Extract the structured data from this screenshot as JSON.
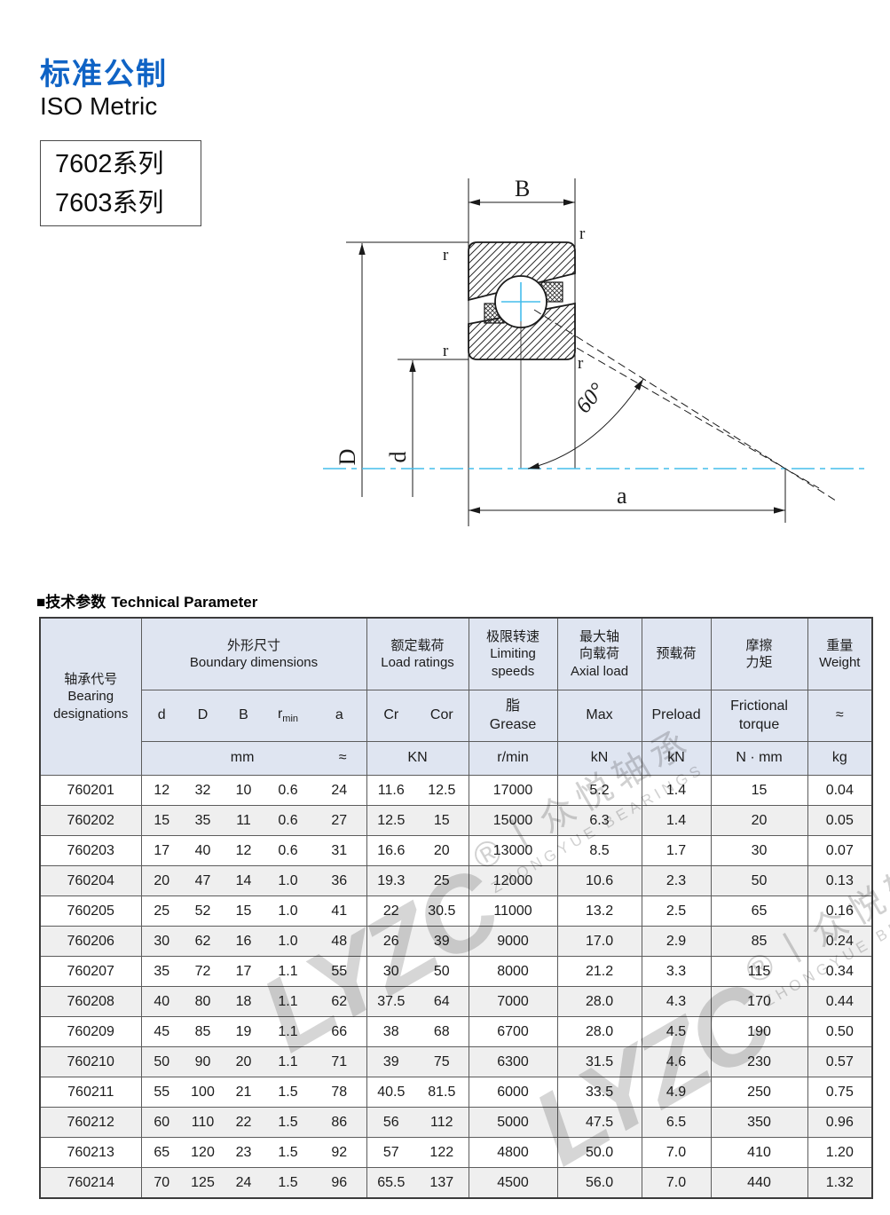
{
  "page": {
    "title_cn": "标准公制",
    "title_en": "ISO Metric",
    "series_line1": "7602系列",
    "series_line2": "7603系列",
    "section_cn": "■技术参数",
    "section_en": "Technical Parameter"
  },
  "diagram": {
    "b": "B",
    "d_outer": "D",
    "d_inner": "d",
    "a": "a",
    "angle": "60°",
    "r1": "r",
    "r2": "r",
    "r3": "r",
    "r4": "r",
    "centerline_color": "#45bdec"
  },
  "watermark": {
    "logo": "LYZC",
    "reg": "®丨",
    "cn": "众悦轴承",
    "en": "ZHONGYUE BEARINGS"
  },
  "table": {
    "designations": {
      "cn": "轴承代号",
      "en": "Bearing\ndesignations"
    },
    "groups": {
      "boundary": {
        "cn": "外形尺寸",
        "en": "Boundary dimensions"
      },
      "load": {
        "cn": "额定载荷",
        "en": "Load ratings"
      },
      "speeds": {
        "cn": "极限转速",
        "en": "Limiting\nspeeds"
      },
      "axial": {
        "cn": "最大轴\n向载荷",
        "en": "Axial load"
      },
      "preload": {
        "cn": "预载荷"
      },
      "friction": {
        "cn": "摩擦\n力矩"
      },
      "weight": {
        "cn": "重量",
        "en": "Weight"
      }
    },
    "sub": {
      "d": "d",
      "D": "D",
      "B": "B",
      "r": "r",
      "rsub": "min",
      "a": "a",
      "cr": "Cr",
      "cor": "Cor",
      "grease": "脂\nGrease",
      "max": "Max",
      "preload": "Preload",
      "torque": "Frictional\ntorque",
      "weight": "≈"
    },
    "units": {
      "mm": "mm",
      "approx": "≈",
      "kn_caps": "KN",
      "rpm": "r/min",
      "kn1": "kN",
      "kn2": "kN",
      "nmm": "N · mm",
      "kg": "kg"
    },
    "rows": [
      [
        "760201",
        "12",
        "32",
        "10",
        "0.6",
        "24",
        "11.6",
        "12.5",
        "17000",
        "5.2",
        "1.4",
        "15",
        "0.04"
      ],
      [
        "760202",
        "15",
        "35",
        "11",
        "0.6",
        "27",
        "12.5",
        "15",
        "15000",
        "6.3",
        "1.4",
        "20",
        "0.05"
      ],
      [
        "760203",
        "17",
        "40",
        "12",
        "0.6",
        "31",
        "16.6",
        "20",
        "13000",
        "8.5",
        "1.7",
        "30",
        "0.07"
      ],
      [
        "760204",
        "20",
        "47",
        "14",
        "1.0",
        "36",
        "19.3",
        "25",
        "12000",
        "10.6",
        "2.3",
        "50",
        "0.13"
      ],
      [
        "760205",
        "25",
        "52",
        "15",
        "1.0",
        "41",
        "22",
        "30.5",
        "11000",
        "13.2",
        "2.5",
        "65",
        "0.16"
      ],
      [
        "760206",
        "30",
        "62",
        "16",
        "1.0",
        "48",
        "26",
        "39",
        "9000",
        "17.0",
        "2.9",
        "85",
        "0.24"
      ],
      [
        "760207",
        "35",
        "72",
        "17",
        "1.1",
        "55",
        "30",
        "50",
        "8000",
        "21.2",
        "3.3",
        "115",
        "0.34"
      ],
      [
        "760208",
        "40",
        "80",
        "18",
        "1.1",
        "62",
        "37.5",
        "64",
        "7000",
        "28.0",
        "4.3",
        "170",
        "0.44"
      ],
      [
        "760209",
        "45",
        "85",
        "19",
        "1.1",
        "66",
        "38",
        "68",
        "6700",
        "28.0",
        "4.5",
        "190",
        "0.50"
      ],
      [
        "760210",
        "50",
        "90",
        "20",
        "1.1",
        "71",
        "39",
        "75",
        "6300",
        "31.5",
        "4.6",
        "230",
        "0.57"
      ],
      [
        "760211",
        "55",
        "100",
        "21",
        "1.5",
        "78",
        "40.5",
        "81.5",
        "6000",
        "33.5",
        "4.9",
        "250",
        "0.75"
      ],
      [
        "760212",
        "60",
        "110",
        "22",
        "1.5",
        "86",
        "56",
        "112",
        "5000",
        "47.5",
        "6.5",
        "350",
        "0.96"
      ],
      [
        "760213",
        "65",
        "120",
        "23",
        "1.5",
        "92",
        "57",
        "122",
        "4800",
        "50.0",
        "7.0",
        "410",
        "1.20"
      ],
      [
        "760214",
        "70",
        "125",
        "24",
        "1.5",
        "96",
        "65.5",
        "137",
        "4500",
        "56.0",
        "7.0",
        "440",
        "1.32"
      ]
    ]
  }
}
